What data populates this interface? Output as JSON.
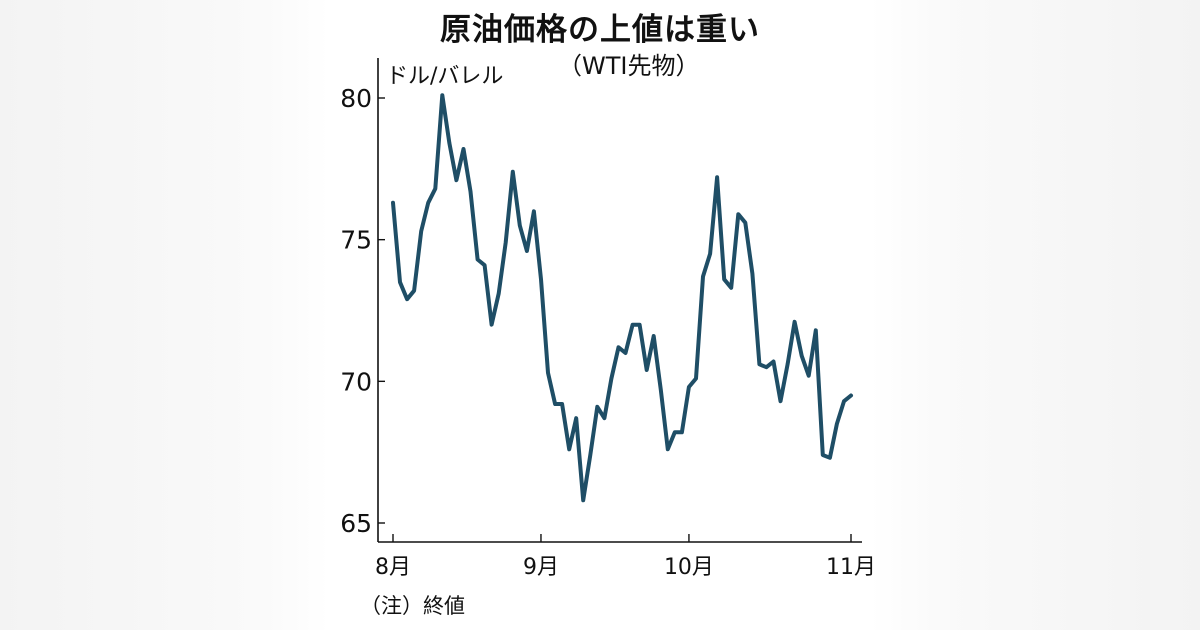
{
  "chart_data": {
    "type": "line",
    "title": "原油価格の上値は重い",
    "subtitle": "（WTI先物）",
    "ylabel": "ドル/バレル",
    "note": "（注）終値",
    "ylim": [
      65,
      81
    ],
    "yticks": [
      65,
      70,
      75,
      80
    ],
    "ytick_labels": [
      "65",
      "70",
      "75",
      "80"
    ],
    "xticks": [
      {
        "label": "8月",
        "index": 0
      },
      {
        "label": "9月",
        "index": 21
      },
      {
        "label": "10月",
        "index": 42
      },
      {
        "label": "11月",
        "index": 65
      }
    ],
    "series": [
      {
        "name": "WTI先物",
        "color": "#1f4e66",
        "values": [
          76.3,
          73.5,
          72.9,
          73.2,
          75.3,
          76.3,
          76.8,
          80.1,
          78.4,
          77.1,
          78.2,
          76.7,
          74.3,
          74.1,
          72.0,
          73.1,
          74.9,
          77.4,
          75.5,
          74.6,
          76.0,
          73.6,
          70.3,
          69.2,
          69.2,
          67.6,
          68.7,
          65.8,
          67.4,
          69.1,
          68.7,
          70.1,
          71.2,
          71.0,
          72.0,
          72.0,
          70.4,
          71.6,
          69.7,
          67.6,
          68.2,
          68.2,
          69.8,
          70.1,
          73.7,
          74.5,
          77.2,
          73.6,
          73.3,
          75.9,
          75.6,
          73.8,
          70.6,
          70.5,
          70.7,
          69.3,
          70.6,
          72.1,
          70.9,
          70.2,
          71.8,
          67.4,
          67.3,
          68.5,
          69.3,
          69.5
        ]
      }
    ]
  }
}
